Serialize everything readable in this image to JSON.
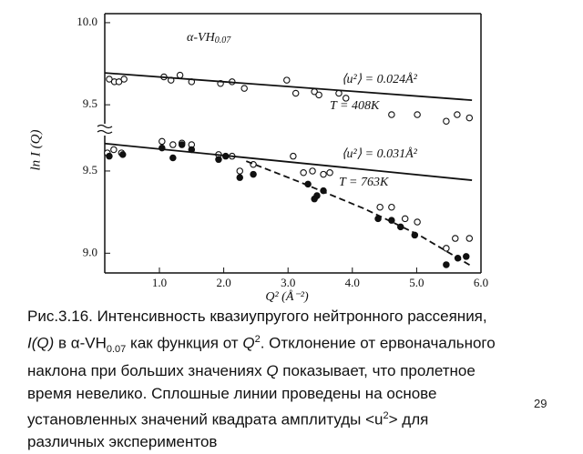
{
  "chart_data": [
    {
      "type": "scatter",
      "title": "α-VH",
      "title_sub": "0.07",
      "xlim": [
        0.15,
        6.0
      ],
      "ylim": [
        9.39,
        10.055
      ],
      "yticks": [
        {
          "value": 10,
          "label": "10.0"
        },
        {
          "value": 9.5,
          "label": "9.5"
        }
      ],
      "annotations": [
        "⟨u²⟩ = 0.024Å²",
        "T = 408K"
      ],
      "series": [
        {
          "marker": "open",
          "color": "#111",
          "x": [
            0.22,
            0.3,
            0.37,
            0.45,
            1.07,
            1.18,
            1.32,
            1.5,
            1.95,
            2.13,
            2.32,
            2.98,
            3.12,
            3.41,
            3.48,
            3.79,
            3.9,
            4.61,
            5.01,
            5.46,
            5.63,
            5.82
          ],
          "values": [
            9.656,
            9.64,
            9.64,
            9.656,
            9.67,
            9.65,
            9.68,
            9.64,
            9.63,
            9.64,
            9.6,
            9.65,
            9.57,
            9.58,
            9.56,
            9.57,
            9.54,
            9.44,
            9.44,
            9.4,
            9.44,
            9.42
          ]
        },
        {
          "style": "solid",
          "color": "#111",
          "x": [
            0.15,
            5.86
          ],
          "values": [
            9.694,
            9.528
          ]
        }
      ]
    },
    {
      "type": "scatter",
      "xlabel": "Q² (Å⁻²)",
      "ylabel": "ln I (Q)",
      "xlim": [
        0.15,
        6.0
      ],
      "ylim": [
        8.88,
        9.71
      ],
      "xticks": [
        {
          "value": 1,
          "label": "1.0"
        },
        {
          "value": 2,
          "label": "2.0"
        },
        {
          "value": 3,
          "label": "3.0"
        },
        {
          "value": 4,
          "label": "4.0"
        },
        {
          "value": 5,
          "label": "5.0"
        },
        {
          "value": 6,
          "label": "6.0"
        }
      ],
      "yticks": [
        {
          "value": 9.5,
          "label": "9.5"
        },
        {
          "value": 9,
          "label": "9.0"
        }
      ],
      "annotations": [
        "⟨u²⟩ = 0.031Å²",
        "T = 763K"
      ],
      "series": [
        {
          "marker": "open",
          "color": "#111",
          "x": [
            0.19,
            0.29,
            0.41,
            1.04,
            1.21,
            1.35,
            1.5,
            1.92,
            2.13,
            2.25,
            2.46,
            3.08,
            3.24,
            3.38,
            3.55,
            3.65,
            4.43,
            4.61,
            4.82,
            5.01,
            5.46,
            5.6,
            5.82
          ],
          "values": [
            9.61,
            9.63,
            9.61,
            9.68,
            9.66,
            9.67,
            9.66,
            9.6,
            9.59,
            9.5,
            9.54,
            9.59,
            9.49,
            9.5,
            9.48,
            9.49,
            9.28,
            9.28,
            9.21,
            9.19,
            9.03,
            9.09,
            9.09
          ]
        },
        {
          "marker": "filled",
          "color": "#111",
          "x": [
            0.22,
            0.43,
            1.04,
            1.21,
            1.35,
            1.5,
            1.92,
            2.03,
            2.25,
            2.46,
            3.31,
            3.45,
            3.55,
            3.41,
            4.4,
            4.61,
            4.75,
            4.97,
            5.46,
            5.64,
            5.77
          ],
          "values": [
            9.59,
            9.6,
            9.64,
            9.58,
            9.66,
            9.63,
            9.57,
            9.59,
            9.46,
            9.48,
            9.42,
            9.35,
            9.38,
            9.33,
            9.21,
            9.2,
            9.16,
            9.11,
            8.93,
            8.97,
            8.98
          ]
        },
        {
          "style": "solid",
          "color": "#111",
          "x": [
            0.15,
            5.86
          ],
          "values": [
            9.667,
            9.444
          ]
        },
        {
          "style": "dashed",
          "color": "#111",
          "x": [
            2.35,
            3.2,
            4.19,
            5.04,
            5.86
          ],
          "values": [
            9.56,
            9.43,
            9.27,
            9.11,
            8.92
          ]
        }
      ]
    }
  ],
  "caption": {
    "l1": "Рис.3.16. Интенсивность квазиупругого нейтронного рассеяния,",
    "l2a": "I(Q)",
    "l2b": " в α-VH",
    "l2c": "0.07",
    "l2d": " как функция от ",
    "l2e": "Q",
    "l2f": "2",
    "l2g": ". Отклонение от ервоначального",
    "l3a": "наклона при  больших значениях ",
    "l3b": "Q",
    "l3c": " показывает, что пролетное",
    "l4": "время невелико. Сплошные линии проведены на основе",
    "l5a": "установленных значений квадрата амплитуды <u",
    "l5b": "2",
    "l5c": "> для",
    "l6": "различных экспериментов"
  },
  "page_number": "29"
}
